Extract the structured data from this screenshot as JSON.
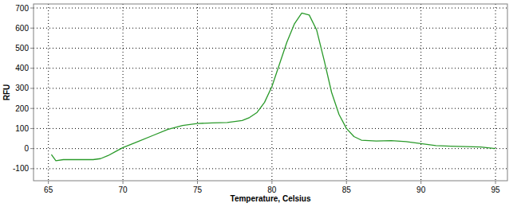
{
  "chart_data": {
    "type": "line",
    "x_label": "Temperature, Celsius",
    "y_label": "RFU",
    "x": [
      65.2,
      65.5,
      66,
      67,
      68,
      68.5,
      69,
      69.5,
      70,
      71,
      72,
      73,
      74,
      75,
      76,
      77,
      78,
      78.5,
      79,
      79.5,
      80,
      80.5,
      81,
      81.5,
      82,
      82.5,
      83,
      83.5,
      84,
      84.5,
      85,
      85.5,
      86,
      87,
      88,
      89,
      90,
      91,
      92,
      93,
      94,
      95
    ],
    "values": [
      -30,
      -60,
      -55,
      -55,
      -55,
      -50,
      -35,
      -15,
      5,
      35,
      65,
      95,
      115,
      125,
      128,
      130,
      140,
      155,
      180,
      230,
      310,
      420,
      530,
      620,
      675,
      665,
      590,
      440,
      280,
      170,
      100,
      60,
      42,
      38,
      40,
      35,
      25,
      15,
      12,
      10,
      8,
      0
    ],
    "color": "#2a9a2a",
    "xlim": [
      64,
      95.8
    ],
    "xticks": [
      65,
      70,
      75,
      80,
      85,
      90,
      95
    ],
    "ylim": [
      -160,
      720
    ],
    "yticks": [
      -100,
      0,
      100,
      200,
      300,
      400,
      500,
      600,
      700
    ],
    "grid": true
  }
}
